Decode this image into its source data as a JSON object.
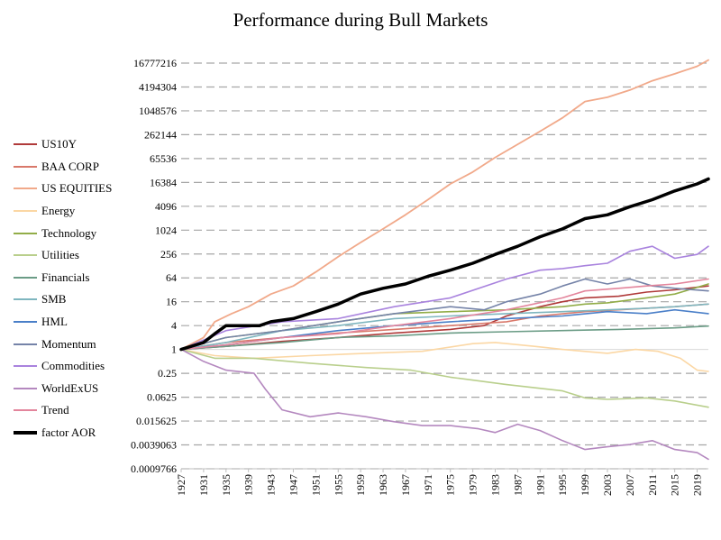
{
  "chart_data": {
    "type": "line",
    "title": "Performance during Bull Markets",
    "xlabel": "",
    "ylabel": "",
    "yscale": "log2",
    "ylim": [
      0.0009765625,
      16777216
    ],
    "xlim": [
      1927,
      2021
    ],
    "grid": "horizontal dashed",
    "legend_position": "left",
    "y_ticks": [
      {
        "value": 16777216,
        "label": "16777216"
      },
      {
        "value": 4194304,
        "label": "4194304"
      },
      {
        "value": 1048576,
        "label": "1048576"
      },
      {
        "value": 262144,
        "label": "262144"
      },
      {
        "value": 65536,
        "label": "65536"
      },
      {
        "value": 16384,
        "label": "16384"
      },
      {
        "value": 4096,
        "label": "4096"
      },
      {
        "value": 1024,
        "label": "1024"
      },
      {
        "value": 256,
        "label": "256"
      },
      {
        "value": 64,
        "label": "64"
      },
      {
        "value": 16,
        "label": "16"
      },
      {
        "value": 4,
        "label": "4"
      },
      {
        "value": 1,
        "label": "1"
      },
      {
        "value": 0.25,
        "label": "0.25"
      },
      {
        "value": 0.0625,
        "label": "0.0625"
      },
      {
        "value": 0.015625,
        "label": "0.015625"
      },
      {
        "value": 0.00390625,
        "label": "0.0039063"
      },
      {
        "value": 0.0009765625,
        "label": "0.0009766"
      }
    ],
    "x_ticks": [
      "1927",
      "1931",
      "1935",
      "1939",
      "1943",
      "1947",
      "1951",
      "1955",
      "1959",
      "1963",
      "1967",
      "1971",
      "1975",
      "1979",
      "1983",
      "1987",
      "1991",
      "1995",
      "1999",
      "2003",
      "2007",
      "2011",
      "2015",
      "2019"
    ],
    "series": [
      {
        "name": "US10Y",
        "color": "#b03a3a",
        "width": 1.6,
        "points": [
          [
            1927,
            1
          ],
          [
            1935,
            1.2
          ],
          [
            1945,
            1.6
          ],
          [
            1955,
            2
          ],
          [
            1965,
            2.6
          ],
          [
            1975,
            3.2
          ],
          [
            1981,
            4
          ],
          [
            1985,
            7
          ],
          [
            1991,
            12
          ],
          [
            1995,
            16
          ],
          [
            1999,
            20
          ],
          [
            2005,
            22
          ],
          [
            2010,
            28
          ],
          [
            2015,
            32
          ],
          [
            2021,
            40
          ]
        ]
      },
      {
        "name": "BAA CORP",
        "color": "#d9786a",
        "width": 1.6,
        "points": [
          [
            1927,
            1
          ],
          [
            1935,
            1.5
          ],
          [
            1945,
            2
          ],
          [
            1955,
            2.6
          ],
          [
            1965,
            3.2
          ],
          [
            1975,
            4
          ],
          [
            1985,
            5
          ],
          [
            1991,
            7
          ],
          [
            1999,
            9
          ],
          [
            2005,
            10
          ],
          [
            2010,
            11
          ],
          [
            2015,
            12
          ],
          [
            2021,
            14
          ]
        ]
      },
      {
        "name": "US EQUITIES",
        "color": "#f1a98a",
        "width": 1.8,
        "points": [
          [
            1927,
            1
          ],
          [
            1931,
            2
          ],
          [
            1933,
            5
          ],
          [
            1936,
            8
          ],
          [
            1939,
            12
          ],
          [
            1943,
            25
          ],
          [
            1947,
            40
          ],
          [
            1951,
            90
          ],
          [
            1955,
            220
          ],
          [
            1959,
            500
          ],
          [
            1963,
            1100
          ],
          [
            1967,
            2500
          ],
          [
            1971,
            6000
          ],
          [
            1975,
            15000
          ],
          [
            1979,
            30000
          ],
          [
            1983,
            70000
          ],
          [
            1987,
            150000
          ],
          [
            1991,
            320000
          ],
          [
            1995,
            700000
          ],
          [
            1999,
            1800000
          ],
          [
            2003,
            2300000
          ],
          [
            2007,
            3500000
          ],
          [
            2011,
            6000000
          ],
          [
            2015,
            9000000
          ],
          [
            2019,
            14000000
          ],
          [
            2021,
            20000000
          ]
        ]
      },
      {
        "name": "Energy",
        "color": "#fbd7a4",
        "width": 1.6,
        "points": [
          [
            1927,
            1
          ],
          [
            1933,
            0.7
          ],
          [
            1940,
            0.6
          ],
          [
            1950,
            0.7
          ],
          [
            1960,
            0.8
          ],
          [
            1970,
            0.9
          ],
          [
            1979,
            1.4
          ],
          [
            1983,
            1.5
          ],
          [
            1990,
            1.2
          ],
          [
            1995,
            1
          ],
          [
            2003,
            0.8
          ],
          [
            2008,
            1
          ],
          [
            2012,
            0.9
          ],
          [
            2016,
            0.6
          ],
          [
            2019,
            0.3
          ],
          [
            2021,
            0.28
          ]
        ]
      },
      {
        "name": "Technology",
        "color": "#92ad48",
        "width": 1.6,
        "points": [
          [
            1927,
            1
          ],
          [
            1935,
            2
          ],
          [
            1945,
            3
          ],
          [
            1955,
            5
          ],
          [
            1965,
            8
          ],
          [
            1975,
            9
          ],
          [
            1985,
            10
          ],
          [
            1995,
            12
          ],
          [
            1999,
            14
          ],
          [
            2003,
            15
          ],
          [
            2010,
            20
          ],
          [
            2015,
            25
          ],
          [
            2021,
            45
          ]
        ]
      },
      {
        "name": "Utilities",
        "color": "#b9cf8c",
        "width": 1.6,
        "points": [
          [
            1927,
            1
          ],
          [
            1933,
            0.6
          ],
          [
            1940,
            0.6
          ],
          [
            1950,
            0.45
          ],
          [
            1960,
            0.35
          ],
          [
            1968,
            0.3
          ],
          [
            1975,
            0.2
          ],
          [
            1985,
            0.13
          ],
          [
            1995,
            0.09
          ],
          [
            1999,
            0.06
          ],
          [
            2003,
            0.055
          ],
          [
            2010,
            0.06
          ],
          [
            2015,
            0.05
          ],
          [
            2021,
            0.035
          ]
        ]
      },
      {
        "name": "Financials",
        "color": "#6b9c86",
        "width": 1.6,
        "points": [
          [
            1927,
            1
          ],
          [
            1935,
            1.2
          ],
          [
            1945,
            1.5
          ],
          [
            1955,
            2
          ],
          [
            1965,
            2.2
          ],
          [
            1975,
            2.6
          ],
          [
            1985,
            2.8
          ],
          [
            1995,
            3
          ],
          [
            2005,
            3.2
          ],
          [
            2015,
            3.5
          ],
          [
            2021,
            3.9
          ]
        ]
      },
      {
        "name": "SMB",
        "color": "#7fb6bf",
        "width": 1.6,
        "points": [
          [
            1927,
            1
          ],
          [
            1935,
            1.5
          ],
          [
            1945,
            3
          ],
          [
            1955,
            4
          ],
          [
            1965,
            6
          ],
          [
            1975,
            7
          ],
          [
            1985,
            8
          ],
          [
            1995,
            9
          ],
          [
            2003,
            10
          ],
          [
            2010,
            11
          ],
          [
            2015,
            12
          ],
          [
            2021,
            14
          ]
        ]
      },
      {
        "name": "HML",
        "color": "#4a7fc8",
        "width": 1.6,
        "points": [
          [
            1927,
            1
          ],
          [
            1935,
            1.3
          ],
          [
            1945,
            2
          ],
          [
            1955,
            3
          ],
          [
            1965,
            4
          ],
          [
            1975,
            5
          ],
          [
            1985,
            6
          ],
          [
            1995,
            7
          ],
          [
            2003,
            9
          ],
          [
            2010,
            8
          ],
          [
            2015,
            10
          ],
          [
            2021,
            8
          ]
        ]
      },
      {
        "name": "Momentum",
        "color": "#7583a8",
        "width": 1.6,
        "points": [
          [
            1927,
            1
          ],
          [
            1935,
            2
          ],
          [
            1945,
            3
          ],
          [
            1955,
            5
          ],
          [
            1965,
            8
          ],
          [
            1975,
            12
          ],
          [
            1981,
            10
          ],
          [
            1985,
            16
          ],
          [
            1991,
            25
          ],
          [
            1995,
            40
          ],
          [
            1999,
            60
          ],
          [
            2003,
            45
          ],
          [
            2007,
            60
          ],
          [
            2011,
            40
          ],
          [
            2015,
            35
          ],
          [
            2021,
            30
          ]
        ]
      },
      {
        "name": "Commodities",
        "color": "#a983de",
        "width": 1.6,
        "points": [
          [
            1927,
            1
          ],
          [
            1935,
            3
          ],
          [
            1945,
            5
          ],
          [
            1955,
            6
          ],
          [
            1965,
            12
          ],
          [
            1975,
            20
          ],
          [
            1985,
            60
          ],
          [
            1991,
            100
          ],
          [
            1995,
            110
          ],
          [
            1999,
            130
          ],
          [
            2003,
            150
          ],
          [
            2007,
            300
          ],
          [
            2011,
            400
          ],
          [
            2015,
            200
          ],
          [
            2019,
            250
          ],
          [
            2021,
            400
          ]
        ]
      },
      {
        "name": "WorldExUS",
        "color": "#b488bf",
        "width": 1.6,
        "points": [
          [
            1927,
            1
          ],
          [
            1931,
            0.5
          ],
          [
            1935,
            0.3
          ],
          [
            1940,
            0.25
          ],
          [
            1942,
            0.1
          ],
          [
            1945,
            0.03
          ],
          [
            1950,
            0.02
          ],
          [
            1955,
            0.025
          ],
          [
            1960,
            0.02
          ],
          [
            1965,
            0.015
          ],
          [
            1970,
            0.012
          ],
          [
            1975,
            0.012
          ],
          [
            1980,
            0.01
          ],
          [
            1983,
            0.008
          ],
          [
            1987,
            0.013
          ],
          [
            1991,
            0.009
          ],
          [
            1995,
            0.005
          ],
          [
            1999,
            0.003
          ],
          [
            2003,
            0.0035
          ],
          [
            2007,
            0.004
          ],
          [
            2011,
            0.005
          ],
          [
            2015,
            0.003
          ],
          [
            2019,
            0.0025
          ],
          [
            2021,
            0.0017
          ]
        ]
      },
      {
        "name": "Trend",
        "color": "#e3859c",
        "width": 1.6,
        "points": [
          [
            1927,
            1
          ],
          [
            1935,
            1.3
          ],
          [
            1945,
            2
          ],
          [
            1955,
            2.5
          ],
          [
            1965,
            4
          ],
          [
            1975,
            6
          ],
          [
            1985,
            10
          ],
          [
            1995,
            20
          ],
          [
            1999,
            30
          ],
          [
            2005,
            35
          ],
          [
            2010,
            40
          ],
          [
            2015,
            45
          ],
          [
            2021,
            60
          ]
        ]
      },
      {
        "name": "factor AOR",
        "color": "#000000",
        "width": 3.5,
        "points": [
          [
            1927,
            1
          ],
          [
            1931,
            1.5
          ],
          [
            1933,
            2.5
          ],
          [
            1935,
            4
          ],
          [
            1941,
            4
          ],
          [
            1943,
            5
          ],
          [
            1947,
            6
          ],
          [
            1951,
            9
          ],
          [
            1955,
            14
          ],
          [
            1959,
            25
          ],
          [
            1963,
            35
          ],
          [
            1967,
            45
          ],
          [
            1971,
            70
          ],
          [
            1975,
            100
          ],
          [
            1979,
            150
          ],
          [
            1983,
            250
          ],
          [
            1987,
            400
          ],
          [
            1991,
            700
          ],
          [
            1995,
            1100
          ],
          [
            1999,
            2000
          ],
          [
            2003,
            2500
          ],
          [
            2007,
            4000
          ],
          [
            2011,
            6000
          ],
          [
            2015,
            10000
          ],
          [
            2019,
            15000
          ],
          [
            2021,
            20000
          ]
        ]
      }
    ]
  }
}
